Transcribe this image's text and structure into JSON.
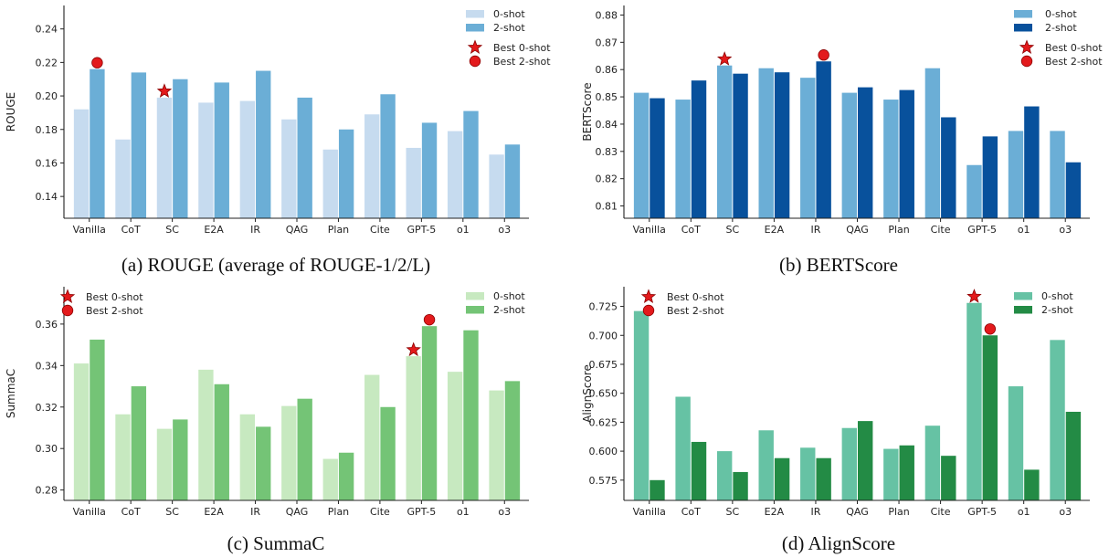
{
  "chart_data": [
    {
      "type": "bar",
      "caption": "(a) ROUGE (average of ROUGE-1/2/L)",
      "ylabel": "ROUGE",
      "ylim": [
        0.127,
        0.254
      ],
      "yticks": [
        "0.14",
        "0.16",
        "0.18",
        "0.20",
        "0.22",
        "0.24"
      ],
      "categories": [
        "Vanilla",
        "CoT",
        "SC",
        "E2A",
        "IR",
        "QAG",
        "Plan",
        "Cite",
        "GPT-5",
        "o1",
        "o3"
      ],
      "series": [
        {
          "name": "0-shot",
          "color": "#c6dbef",
          "values": [
            0.192,
            0.174,
            0.199,
            0.196,
            0.197,
            0.186,
            0.168,
            0.189,
            0.169,
            0.179,
            0.165
          ]
        },
        {
          "name": "2-shot",
          "color": "#6baed6",
          "values": [
            0.216,
            0.214,
            0.21,
            0.208,
            0.215,
            0.199,
            0.18,
            0.201,
            0.184,
            0.191,
            0.171
          ]
        }
      ],
      "markers": [
        {
          "label": "Best 0-shot",
          "symbol": "star",
          "category": "SC",
          "series": 0
        },
        {
          "label": "Best 2-shot",
          "symbol": "circle",
          "category": "Vanilla",
          "series": 1
        }
      ],
      "legend": "top-right",
      "grid": false
    },
    {
      "type": "bar",
      "caption": "(b) BERTScore",
      "ylabel": "BERTScore",
      "ylim": [
        0.8055,
        0.8835
      ],
      "yticks": [
        "0.81",
        "0.82",
        "0.83",
        "0.84",
        "0.85",
        "0.86",
        "0.87",
        "0.88"
      ],
      "categories": [
        "Vanilla",
        "CoT",
        "SC",
        "E2A",
        "IR",
        "QAG",
        "Plan",
        "Cite",
        "GPT-5",
        "o1",
        "o3"
      ],
      "series": [
        {
          "name": "0-shot",
          "color": "#6baed6",
          "values": [
            0.8515,
            0.849,
            0.8615,
            0.8605,
            0.857,
            0.8515,
            0.849,
            0.8605,
            0.825,
            0.8375,
            0.8375
          ]
        },
        {
          "name": "2-shot",
          "color": "#08519c",
          "values": [
            0.8495,
            0.856,
            0.8585,
            0.859,
            0.863,
            0.8535,
            0.8525,
            0.8425,
            0.8355,
            0.8465,
            0.826
          ]
        }
      ],
      "markers": [
        {
          "label": "Best 0-shot",
          "symbol": "star",
          "category": "SC",
          "series": 0
        },
        {
          "label": "Best 2-shot",
          "symbol": "circle",
          "category": "IR",
          "series": 1
        }
      ],
      "legend": "top-right",
      "grid": false
    },
    {
      "type": "bar",
      "caption": "(c) SummaC",
      "ylabel": "SummaC",
      "ylim": [
        0.275,
        0.378
      ],
      "yticks": [
        "0.28",
        "0.30",
        "0.32",
        "0.34",
        "0.36"
      ],
      "categories": [
        "Vanilla",
        "CoT",
        "SC",
        "E2A",
        "IR",
        "QAG",
        "Plan",
        "Cite",
        "GPT-5",
        "o1",
        "o3"
      ],
      "series": [
        {
          "name": "0-shot",
          "color": "#c7e9c0",
          "values": [
            0.341,
            0.3165,
            0.3095,
            0.338,
            0.3165,
            0.3205,
            0.295,
            0.3355,
            0.3445,
            0.337,
            0.328
          ]
        },
        {
          "name": "2-shot",
          "color": "#74c476",
          "values": [
            0.3525,
            0.33,
            0.314,
            0.331,
            0.3105,
            0.324,
            0.298,
            0.32,
            0.359,
            0.357,
            0.3325
          ]
        }
      ],
      "markers": [
        {
          "label": "Best 0-shot",
          "symbol": "star",
          "category": "GPT-5",
          "series": 0
        },
        {
          "label": "Best 2-shot",
          "symbol": "circle",
          "category": "GPT-5",
          "series": 1
        }
      ],
      "legend": "split",
      "grid": false
    },
    {
      "type": "bar",
      "caption": "(d) AlignScore",
      "ylabel": "AlignScore",
      "ylim": [
        0.5575,
        0.742
      ],
      "yticks": [
        "0.575",
        "0.600",
        "0.625",
        "0.650",
        "0.675",
        "0.700",
        "0.725"
      ],
      "categories": [
        "Vanilla",
        "CoT",
        "SC",
        "E2A",
        "IR",
        "QAG",
        "Plan",
        "Cite",
        "GPT-5",
        "o1",
        "o3"
      ],
      "series": [
        {
          "name": "0-shot",
          "color": "#66c2a4",
          "values": [
            0.721,
            0.647,
            0.6,
            0.618,
            0.603,
            0.62,
            0.602,
            0.622,
            0.728,
            0.656,
            0.696
          ]
        },
        {
          "name": "2-shot",
          "color": "#238b45",
          "values": [
            0.575,
            0.608,
            0.582,
            0.594,
            0.594,
            0.626,
            0.605,
            0.596,
            0.7,
            0.584,
            0.634
          ]
        }
      ],
      "markers": [
        {
          "label": "Best 0-shot",
          "symbol": "star",
          "category": "GPT-5",
          "series": 0
        },
        {
          "label": "Best 2-shot",
          "symbol": "circle",
          "category": "GPT-5",
          "series": 1
        }
      ],
      "legend": "split",
      "grid": false
    }
  ]
}
